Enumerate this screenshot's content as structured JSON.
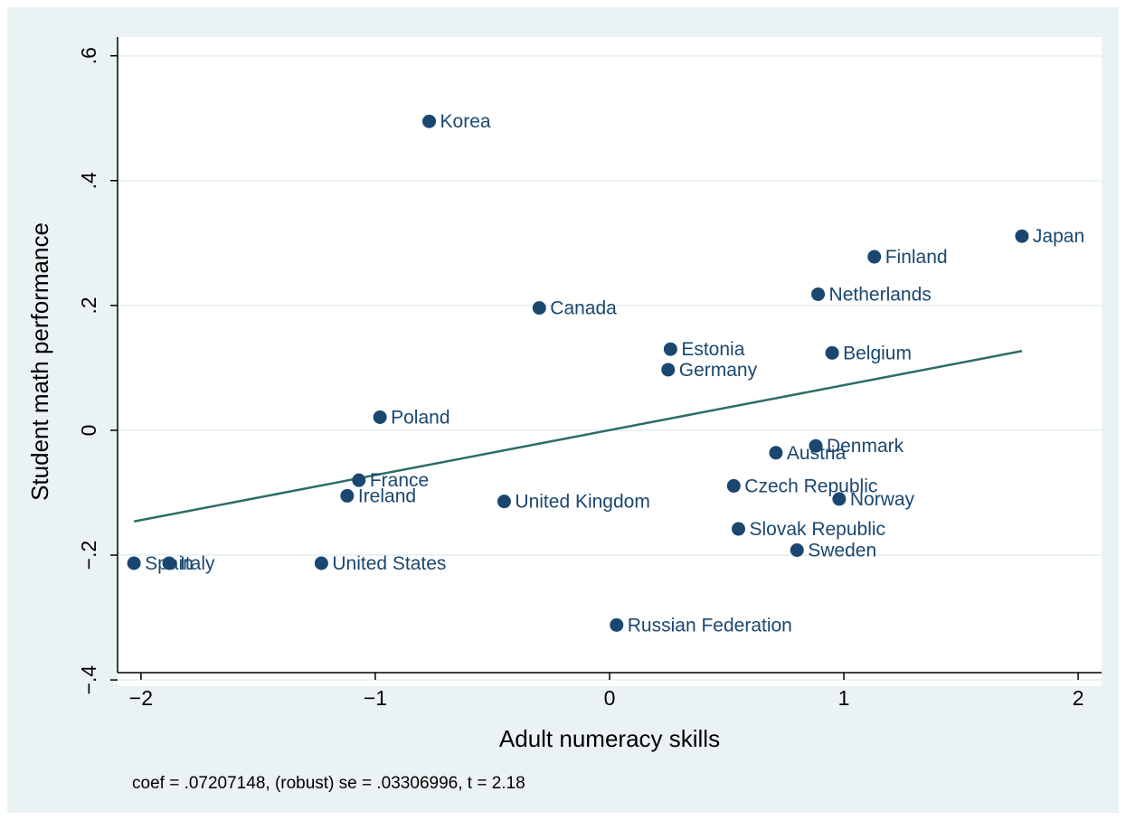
{
  "chart_data": {
    "type": "scatter",
    "xlabel": "Adult numeracy skills",
    "ylabel": "Student math performance",
    "xlim": [
      -2.1,
      2.1
    ],
    "ylim": [
      -0.41,
      0.63
    ],
    "x_ticks": [
      -2,
      -1,
      0,
      1,
      2
    ],
    "x_tick_labels": [
      "−2",
      "−1",
      "0",
      "1",
      "2"
    ],
    "y_ticks": [
      -0.4,
      -0.2,
      0,
      0.2,
      0.4,
      0.6
    ],
    "y_tick_labels": [
      "−.4",
      "−.2",
      "0",
      ".2",
      ".4",
      ".6"
    ],
    "grid": "horizontal",
    "note": "coef = .07207148, (robust) se = .03306996, t = 2.18",
    "points": [
      {
        "label": "Korea",
        "x": -0.77,
        "y": 0.495
      },
      {
        "label": "Japan",
        "x": 1.76,
        "y": 0.311
      },
      {
        "label": "Finland",
        "x": 1.13,
        "y": 0.278
      },
      {
        "label": "Netherlands",
        "x": 0.89,
        "y": 0.218
      },
      {
        "label": "Canada",
        "x": -0.3,
        "y": 0.196
      },
      {
        "label": "Estonia",
        "x": 0.26,
        "y": 0.13
      },
      {
        "label": "Belgium",
        "x": 0.95,
        "y": 0.124
      },
      {
        "label": "Germany",
        "x": 0.25,
        "y": 0.097
      },
      {
        "label": "Poland",
        "x": -0.98,
        "y": 0.021
      },
      {
        "label": "Denmark",
        "x": 0.88,
        "y": -0.025
      },
      {
        "label": "Austria",
        "x": 0.71,
        "y": -0.036
      },
      {
        "label": "France",
        "x": -1.07,
        "y": -0.08
      },
      {
        "label": "Czech Republic",
        "x": 0.53,
        "y": -0.089
      },
      {
        "label": "Ireland",
        "x": -1.12,
        "y": -0.105
      },
      {
        "label": "Norway",
        "x": 0.98,
        "y": -0.11
      },
      {
        "label": "United Kingdom",
        "x": -0.45,
        "y": -0.114
      },
      {
        "label": "Slovak Republic",
        "x": 0.55,
        "y": -0.158
      },
      {
        "label": "Sweden",
        "x": 0.8,
        "y": -0.192
      },
      {
        "label": "Spain",
        "x": -2.03,
        "y": -0.213
      },
      {
        "label": "Italy",
        "x": -1.88,
        "y": -0.213
      },
      {
        "label": "United States",
        "x": -1.23,
        "y": -0.213
      },
      {
        "label": "Russian Federation",
        "x": 0.03,
        "y": -0.312
      }
    ],
    "fit_line": {
      "x": [
        -2.03,
        1.76
      ],
      "y": [
        -0.146,
        0.127
      ]
    },
    "colors": {
      "point": "#1a476f",
      "label": "#1a476f",
      "fit": "#2d6d66",
      "background": "#eaf2f3",
      "plot_area": "#ffffff",
      "grid": "#eaf2f3"
    }
  }
}
